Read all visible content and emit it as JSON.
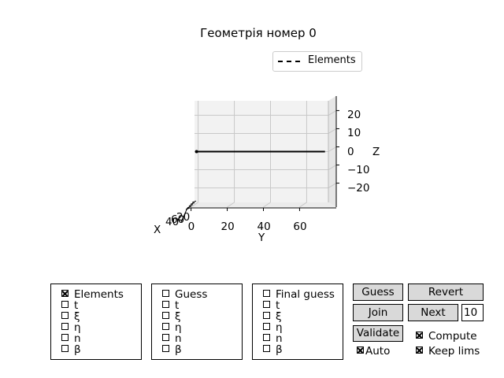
{
  "figure": {
    "title": "Геометрія номер 0",
    "legend": {
      "entries": [
        {
          "label": "Elements",
          "style": "dash-dot black line"
        }
      ]
    }
  },
  "chart_data": {
    "type": "line",
    "projection": "3d",
    "series": [
      {
        "name": "Elements",
        "x": [
          0,
          0
        ],
        "y": [
          0,
          71
        ],
        "z": [
          0,
          0
        ],
        "color": "#000000"
      }
    ],
    "xlabel": "X",
    "ylabel": "Y",
    "zlabel": "Z",
    "xticks": [
      "20",
      "40",
      "60"
    ],
    "yticks": [
      "0",
      "20",
      "40",
      "60"
    ],
    "zticks": [
      "20",
      "10",
      "0",
      "−10",
      "−20"
    ],
    "ylim": [
      -2,
      72
    ],
    "zlim": [
      -28,
      28
    ],
    "grid": true,
    "legend_position": "top-right"
  },
  "panels": [
    {
      "items": [
        {
          "label": "Elements",
          "checked": true
        },
        {
          "label": "t",
          "checked": false
        },
        {
          "label": "ξ",
          "checked": false
        },
        {
          "label": "η",
          "checked": false
        },
        {
          "label": "n",
          "checked": false
        },
        {
          "label": "β",
          "checked": false
        }
      ]
    },
    {
      "items": [
        {
          "label": "Guess",
          "checked": false
        },
        {
          "label": "t",
          "checked": false
        },
        {
          "label": "ξ",
          "checked": false
        },
        {
          "label": "η",
          "checked": false
        },
        {
          "label": "n",
          "checked": false
        },
        {
          "label": "β",
          "checked": false
        }
      ]
    },
    {
      "items": [
        {
          "label": "Final guess",
          "checked": false
        },
        {
          "label": "t",
          "checked": false
        },
        {
          "label": "ξ",
          "checked": false
        },
        {
          "label": "η",
          "checked": false
        },
        {
          "label": "n",
          "checked": false
        },
        {
          "label": "β",
          "checked": false
        }
      ]
    }
  ],
  "buttons": {
    "guess": "Guess",
    "revert": "Revert",
    "join": "Join",
    "next": "Next",
    "validate": "Validate"
  },
  "next_count": "10",
  "checkboxes": {
    "auto": {
      "label": "Auto",
      "checked": true
    },
    "compute": {
      "label": "Compute",
      "checked": true
    },
    "keep_lims": {
      "label": "Keep lims",
      "checked": true
    }
  }
}
